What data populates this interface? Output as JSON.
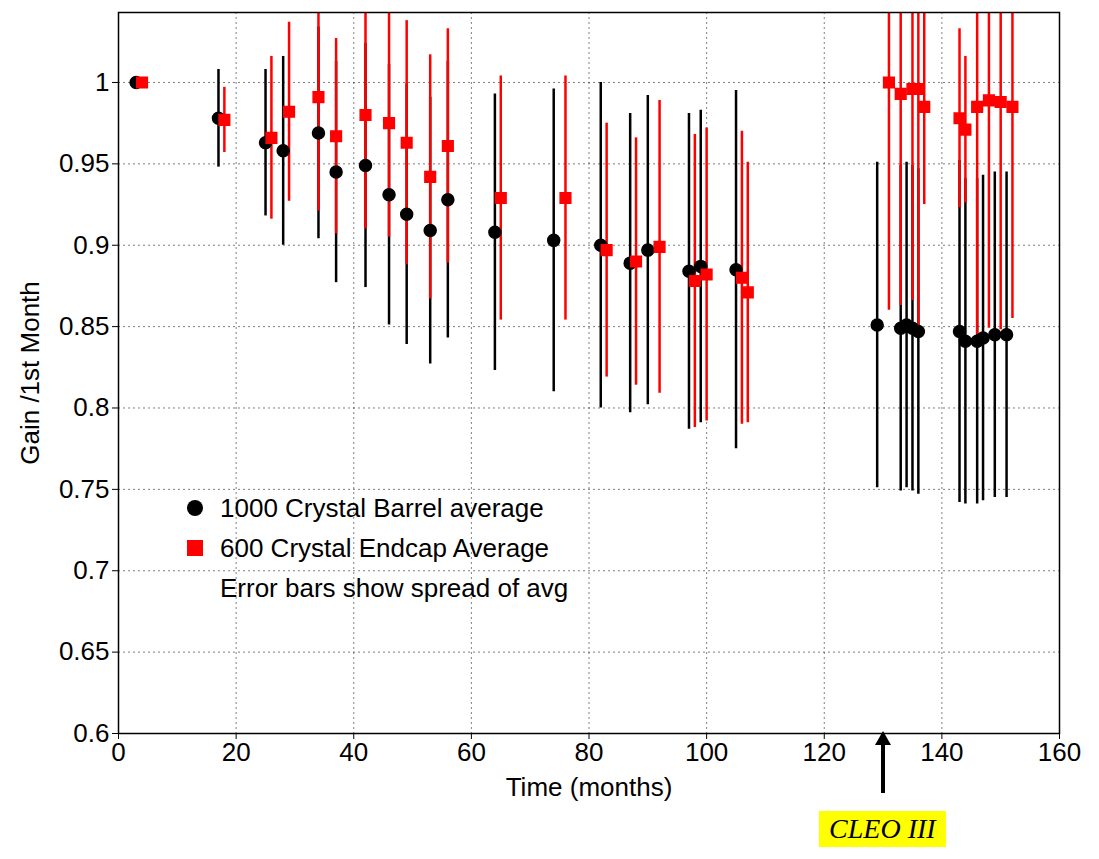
{
  "chart_data": {
    "type": "scatter",
    "xlabel": "Time (months)",
    "ylabel": "Gain /1st Month",
    "xlim": [
      0,
      160
    ],
    "xticks": [
      0,
      20,
      40,
      60,
      80,
      100,
      120,
      140,
      160
    ],
    "ylim": [
      0.6,
      1.043
    ],
    "yticks": [
      0.6,
      0.65,
      0.7,
      0.75,
      0.8,
      0.85,
      0.9,
      0.95,
      1
    ],
    "grid": true,
    "legend": "lower left",
    "annotations": [
      {
        "text": "Error bars show spread of avg"
      },
      {
        "text": "CLEO III",
        "x": 130
      }
    ],
    "series": [
      {
        "name": "1000 Crystal Barrel average",
        "color": "#000000",
        "marker": "circle",
        "x": [
          3,
          17,
          25,
          28,
          34,
          37,
          42,
          46,
          49,
          53,
          56,
          64,
          74,
          82,
          87,
          90,
          97,
          99,
          105,
          129,
          133,
          134,
          135,
          136,
          143,
          144,
          146,
          147,
          149,
          151
        ],
        "values": [
          1.0,
          0.978,
          0.963,
          0.958,
          0.969,
          0.945,
          0.949,
          0.931,
          0.919,
          0.909,
          0.928,
          0.908,
          0.903,
          0.9,
          0.889,
          0.897,
          0.884,
          0.887,
          0.885,
          0.851,
          0.849,
          0.851,
          0.849,
          0.847,
          0.847,
          0.841,
          0.841,
          0.843,
          0.845,
          0.845
        ],
        "errors": [
          0,
          0.03,
          0.045,
          0.058,
          0.065,
          0.068,
          0.075,
          0.08,
          0.08,
          0.082,
          0.085,
          0.085,
          0.093,
          0.1,
          0.092,
          0.095,
          0.097,
          0.096,
          0.11,
          0.1,
          0.1,
          0.1,
          0.1,
          0.1,
          0.105,
          0.1,
          0.1,
          0.1,
          0.1,
          0.1
        ]
      },
      {
        "name": "600 Crystal Endcap Average",
        "color": "#ff0000",
        "marker": "square",
        "x": [
          4,
          18,
          26,
          29,
          34,
          37,
          42,
          46,
          49,
          53,
          56,
          65,
          76,
          83,
          88,
          92,
          98,
          100,
          106,
          107,
          131,
          133,
          135,
          136,
          137,
          143,
          144,
          146,
          148,
          150,
          152
        ],
        "values": [
          1.0,
          0.977,
          0.966,
          0.982,
          0.991,
          0.967,
          0.98,
          0.975,
          0.963,
          0.942,
          0.961,
          0.929,
          0.929,
          0.897,
          0.89,
          0.899,
          0.878,
          0.882,
          0.88,
          0.871,
          1.0,
          0.993,
          0.996,
          0.996,
          0.985,
          0.978,
          0.971,
          0.985,
          0.989,
          0.988,
          0.985
        ],
        "errors": [
          0,
          0.02,
          0.05,
          0.055,
          0.07,
          0.06,
          0.07,
          0.07,
          0.075,
          0.075,
          0.072,
          0.075,
          0.075,
          0.078,
          0.076,
          0.09,
          0.09,
          0.09,
          0.09,
          0.08,
          0.14,
          0.13,
          0.13,
          0.15,
          0.06,
          0.055,
          0.045,
          0.14,
          0.14,
          0.14,
          0.13
        ]
      }
    ]
  }
}
